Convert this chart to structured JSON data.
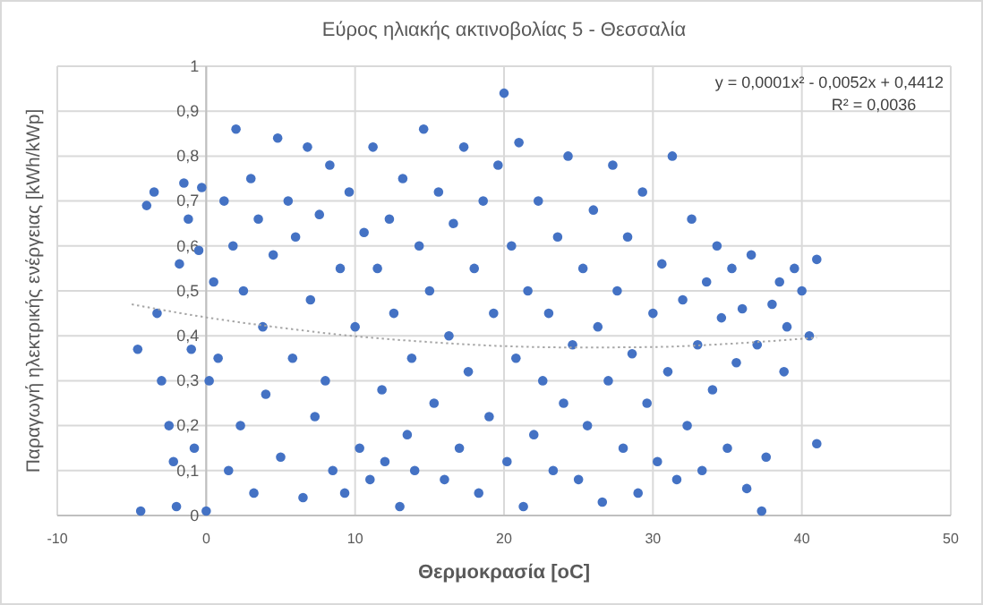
{
  "chart_data": {
    "type": "scatter",
    "title": "Εύρος ηλιακής ακτινοβολίας 5 - Θεσσαλία",
    "xlabel": "Θερμοκρασία [oC]",
    "ylabel": "Παραγωγή ηλεκτρικής ενέργειας [kWh/kWp]",
    "xlim": [
      -10,
      50
    ],
    "xticks": [
      -10,
      0,
      10,
      20,
      30,
      40,
      50
    ],
    "ylim": [
      0,
      1
    ],
    "yticks": [
      0,
      {
        "value": 0.1,
        "label": "0,1"
      },
      {
        "value": 0.2,
        "label": "0,2"
      },
      {
        "value": 0.3,
        "label": "0,3"
      },
      {
        "value": 0.4,
        "label": "0,4"
      },
      {
        "value": 0.5,
        "label": "0,5"
      },
      {
        "value": 0.6,
        "label": "0,6"
      },
      {
        "value": 0.7,
        "label": "0,7"
      },
      {
        "value": 0.8,
        "label": "0,8"
      },
      {
        "value": 0.9,
        "label": "0,9"
      },
      1
    ],
    "grid": true,
    "marker": "circle",
    "annotations": [
      "y = 0,0001x² - 0,0052x + 0,4412",
      "R² = 0,0036"
    ],
    "series": [
      {
        "color": "#4472c4",
        "x": [
          -4.6,
          -4.4,
          -4,
          -3.5,
          -3.3,
          -3,
          -2.5,
          -2.2,
          -2,
          -1.8,
          -1.5,
          -1.2,
          -1,
          -0.8,
          -0.5,
          -0.3,
          0,
          0.2,
          0.5,
          0.8,
          1.2,
          1.5,
          1.8,
          2,
          2.3,
          2.5,
          3,
          3.2,
          3.5,
          3.8,
          4,
          4.5,
          4.8,
          5,
          5.5,
          5.8,
          6,
          6.5,
          6.8,
          7,
          7.3,
          7.6,
          8,
          8.3,
          8.5,
          9,
          9.3,
          9.6,
          10,
          10.3,
          10.6,
          11,
          11.2,
          11.5,
          11.8,
          12,
          12.3,
          12.6,
          13,
          13.2,
          13.5,
          13.8,
          14,
          14.3,
          14.6,
          15,
          15.3,
          15.6,
          16,
          16.3,
          16.6,
          17,
          17.3,
          17.6,
          18,
          18.3,
          18.6,
          19,
          19.3,
          19.6,
          20,
          20.2,
          20.5,
          20.8,
          21,
          21.3,
          21.6,
          22,
          22.3,
          22.6,
          23,
          23.3,
          23.6,
          24,
          24.3,
          24.6,
          25,
          25.3,
          25.6,
          26,
          26.3,
          26.6,
          27,
          27.3,
          27.6,
          28,
          28.3,
          28.6,
          29,
          29.3,
          29.6,
          30,
          30.3,
          30.6,
          31,
          31.3,
          31.6,
          32,
          32.3,
          32.6,
          33,
          33.3,
          33.6,
          34,
          34.3,
          34.6,
          35,
          35.3,
          35.6,
          36,
          36.3,
          36.6,
          37,
          37.3,
          37.6,
          38,
          38.5,
          39,
          39.5,
          40,
          40.5,
          41,
          41,
          38.8
        ],
        "values": [
          0.37,
          0.01,
          0.69,
          0.72,
          0.45,
          0.3,
          0.2,
          0.12,
          0.02,
          0.56,
          0.74,
          0.66,
          0.37,
          0.15,
          0.59,
          0.73,
          0.01,
          0.3,
          0.52,
          0.35,
          0.7,
          0.1,
          0.6,
          0.86,
          0.2,
          0.5,
          0.75,
          0.05,
          0.66,
          0.42,
          0.27,
          0.58,
          0.84,
          0.13,
          0.7,
          0.35,
          0.62,
          0.04,
          0.82,
          0.48,
          0.22,
          0.67,
          0.3,
          0.78,
          0.1,
          0.55,
          0.05,
          0.72,
          0.42,
          0.15,
          0.63,
          0.08,
          0.82,
          0.55,
          0.28,
          0.12,
          0.66,
          0.45,
          0.02,
          0.75,
          0.18,
          0.35,
          0.1,
          0.6,
          0.86,
          0.5,
          0.25,
          0.72,
          0.08,
          0.4,
          0.65,
          0.15,
          0.82,
          0.32,
          0.55,
          0.05,
          0.7,
          0.22,
          0.45,
          0.78,
          0.94,
          0.12,
          0.6,
          0.35,
          0.83,
          0.02,
          0.5,
          0.18,
          0.7,
          0.3,
          0.45,
          0.1,
          0.62,
          0.25,
          0.8,
          0.38,
          0.08,
          0.55,
          0.2,
          0.68,
          0.42,
          0.03,
          0.3,
          0.78,
          0.5,
          0.15,
          0.62,
          0.36,
          0.05,
          0.72,
          0.25,
          0.45,
          0.12,
          0.56,
          0.32,
          0.8,
          0.08,
          0.48,
          0.2,
          0.66,
          0.38,
          0.1,
          0.52,
          0.28,
          0.6,
          0.44,
          0.15,
          0.55,
          0.34,
          0.46,
          0.06,
          0.58,
          0.38,
          0.01,
          0.13,
          0.47,
          0.52,
          0.42,
          0.55,
          0.5,
          0.4,
          0.57,
          0.16,
          0.32
        ]
      },
      {
        "type": "line",
        "color": "#a6a6a6",
        "line_style": "dotted",
        "marker": "none",
        "x": [
          -5,
          0,
          5,
          10,
          15,
          20,
          25,
          30,
          35,
          41
        ],
        "values": [
          0.47,
          0.441,
          0.418,
          0.399,
          0.386,
          0.377,
          0.374,
          0.375,
          0.382,
          0.396
        ]
      }
    ]
  }
}
